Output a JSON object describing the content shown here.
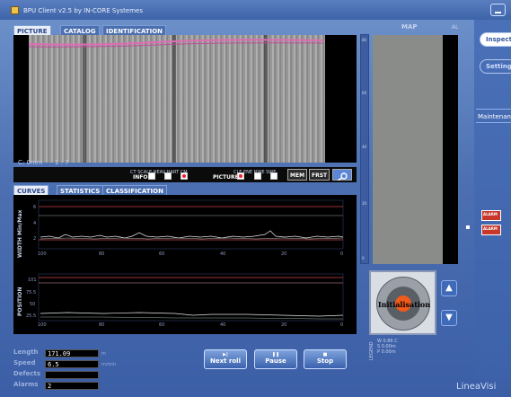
{
  "window": {
    "title": "BPU Client v2.5 by IN-CORE Systemes"
  },
  "top_tabs": [
    {
      "label": "PICTURE",
      "active": true
    },
    {
      "label": "CATALOG",
      "active": false
    },
    {
      "label": "IDENTIFICATION",
      "active": false
    }
  ],
  "picture": {
    "status_left": "C: 0mm",
    "status_right": "1 : 7",
    "toolbar": {
      "group1_caption": "CT  SCALE  HEAV  HART  CM",
      "info_label": "INFO",
      "group2_caption": "CLE   ENE   NWE   SWE",
      "picture_label": "PICTURE",
      "mem_label": "MEM",
      "frost_label": "FRST"
    }
  },
  "bottom_tabs": [
    {
      "label": "CURVES",
      "active": true
    },
    {
      "label": "STATISTICS",
      "active": false
    },
    {
      "label": "CLASSIFICATION",
      "active": false
    }
  ],
  "curves": {
    "width_axis_label": "WIDTH Min/Max",
    "position_axis_label": "POSITION",
    "width_yticks": [
      "6",
      "4",
      "2"
    ],
    "position_yticks": [
      "101",
      "75.5",
      "50",
      "25.5"
    ],
    "xticks": [
      "100",
      "80",
      "60",
      "40",
      "20",
      "0"
    ]
  },
  "map": {
    "title": "MAP",
    "corner_label": "AL",
    "scale_ticks": [
      "80",
      "60",
      "40",
      "20",
      "0"
    ]
  },
  "gauge": {
    "label": "Initialisation"
  },
  "legend": {
    "title": "LEGEND",
    "lines": [
      "W  0.86 C",
      "S  0.00m",
      "P  0.00m"
    ]
  },
  "sidebar": {
    "buttons": [
      {
        "label": "Inspect",
        "active": true
      },
      {
        "label": "Setting",
        "active": false
      }
    ],
    "maintenance_label": "Maintenance",
    "alarm_label": "ALARM"
  },
  "stats": {
    "length_label": "Length",
    "length_value": "171.09",
    "length_unit": "m",
    "speed_label": "Speed",
    "speed_value": "6.5",
    "speed_unit": "m/min",
    "defects_label": "Defects",
    "defects_value": "",
    "alarms_label": "Alarms",
    "alarms_value": "2"
  },
  "controls": {
    "next_roll": "Next roll",
    "pause": "Pause",
    "stop": "Stop"
  },
  "brand": "LineaVisi"
}
